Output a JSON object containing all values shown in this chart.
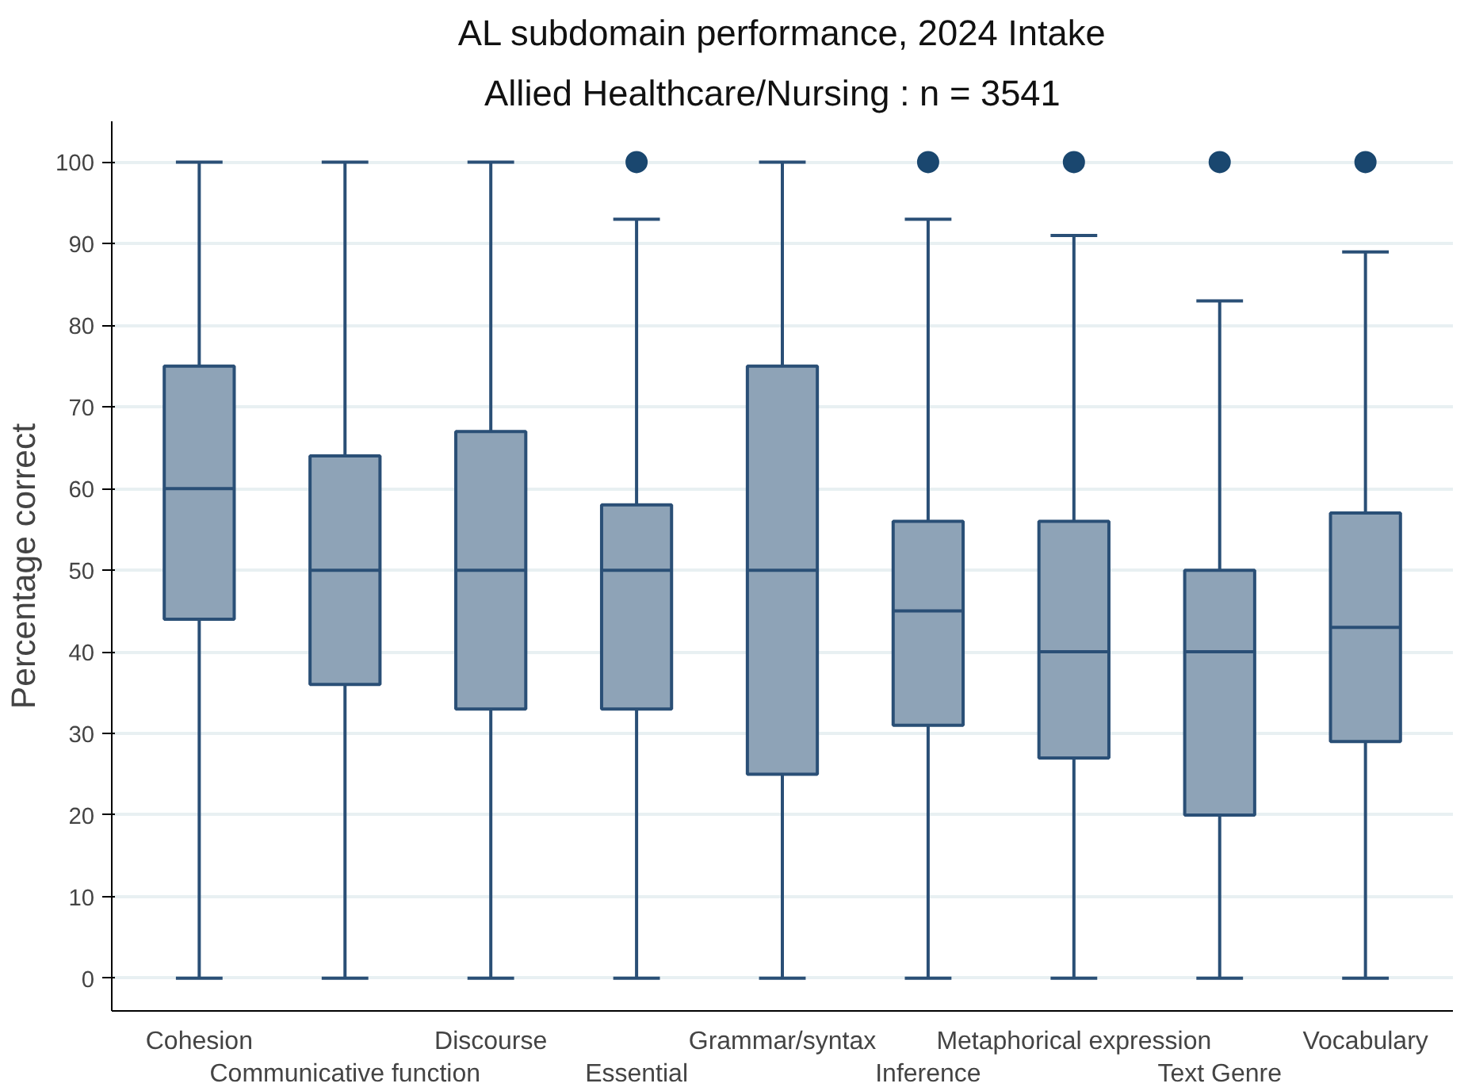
{
  "chart_data": {
    "type": "box",
    "title": "AL subdomain performance, 2024 Intake",
    "subtitle": "Allied Healthcare/Nursing  :  n = 3541",
    "ylabel": "Percentage correct",
    "categories": [
      "Cohesion",
      "Communicative function",
      "Discourse",
      "Essential",
      "Grammar/syntax",
      "Inference",
      "Metaphorical expression",
      "Text Genre",
      "Vocabulary"
    ],
    "series": [
      {
        "color": "#8ea3b7",
        "boxes": [
          {
            "low": 0,
            "q1": 44,
            "median": 60,
            "q3": 75,
            "high": 100
          },
          {
            "low": 0,
            "q1": 36,
            "median": 50,
            "q3": 64,
            "high": 100
          },
          {
            "low": 0,
            "q1": 33,
            "median": 50,
            "q3": 67,
            "high": 100
          },
          {
            "low": 0,
            "q1": 33,
            "median": 50,
            "q3": 58,
            "high": 93,
            "outliers": [
              100
            ]
          },
          {
            "low": 0,
            "q1": 25,
            "median": 50,
            "q3": 75,
            "high": 100
          },
          {
            "low": 0,
            "q1": 31,
            "median": 45,
            "q3": 56,
            "high": 93,
            "outliers": [
              100
            ]
          },
          {
            "low": 0,
            "q1": 27,
            "median": 40,
            "q3": 56,
            "high": 91,
            "outliers": [
              100
            ]
          },
          {
            "low": 0,
            "q1": 20,
            "median": 40,
            "q3": 50,
            "high": 83,
            "outliers": [
              100
            ]
          },
          {
            "low": 0,
            "q1": 29,
            "median": 43,
            "q3": 57,
            "high": 89,
            "outliers": [
              100
            ]
          }
        ]
      }
    ],
    "ylim": [
      -4,
      105
    ],
    "yticks": [
      0,
      10,
      20,
      30,
      40,
      50,
      60,
      70,
      80,
      90,
      100
    ],
    "grid": "y"
  }
}
